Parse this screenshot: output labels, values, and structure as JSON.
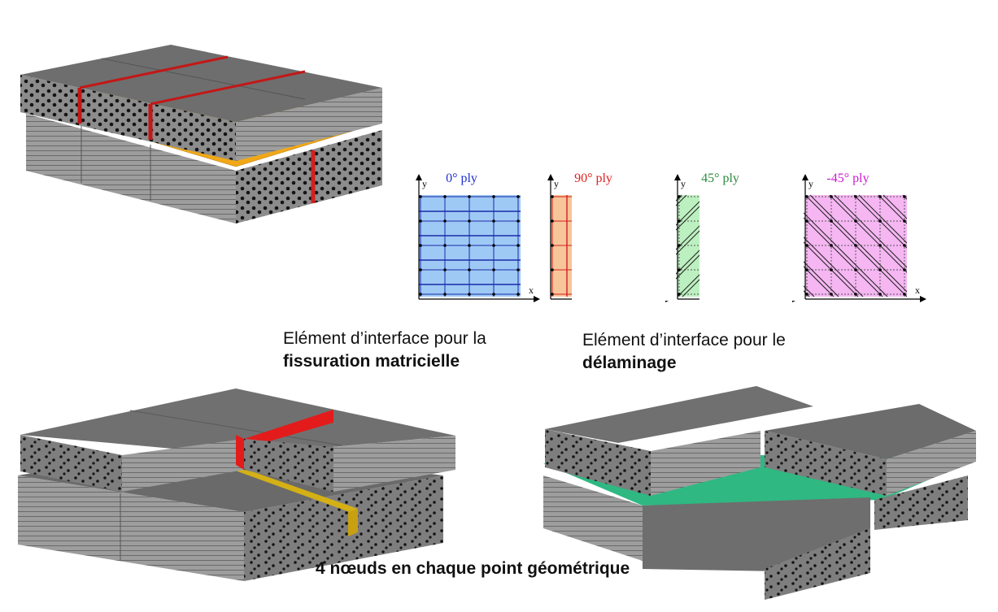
{
  "labels": {
    "matrix_line1": "Elément d’interface pour la",
    "matrix_line2": "fissuration matricielle",
    "delam_line1": "Elément d’interface pour le",
    "delam_line2": "délaminage",
    "bottom": "4 nœuds en chaque point géométrique"
  },
  "plies": [
    {
      "title": "0° ply",
      "color": "#1f2fd0",
      "fill": "#9ec9f5",
      "line": "#1b2aa8"
    },
    {
      "title": "90° ply",
      "color": "#e02020",
      "fill": "#f7c59a",
      "line": "#d42020"
    },
    {
      "title": "45° ply",
      "color": "#2e8b3e",
      "fill": "#bdf0c0",
      "line": "#1a1a1a"
    },
    {
      "title": "-45° ply",
      "color": "#d01ad0",
      "fill": "#f5b6f2",
      "line": "#1a1a1a"
    }
  ],
  "axes": {
    "x": "x",
    "y": "y"
  },
  "colors": {
    "matrix_crack": "#e31b1b",
    "interface_top": "#f0a818",
    "interface_crack": "#d4b015",
    "delamination": "#2fb882",
    "block_top": "#6e6e6e",
    "block_side": "#8a8a8a",
    "block_front": "#9a9a9a"
  }
}
